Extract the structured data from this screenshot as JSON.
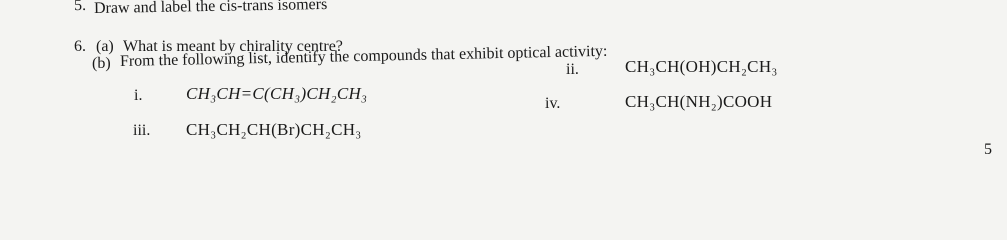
{
  "questions": [
    {
      "number": "5.",
      "text": "Draw and label the cis-trans isomers"
    },
    {
      "number": "6.",
      "parts": [
        {
          "label": "(a)",
          "text": "What is meant by chirality centre?"
        },
        {
          "label": "(b)",
          "text": "From the following list, identify the compounds that exhibit optical activity:",
          "items": [
            {
              "label": "i.",
              "formula": "CH₃CH=C(CH₃)CH₂CH₃"
            },
            {
              "label": "ii.",
              "formula": "CH₃CH(OH)CH₂CH₃"
            },
            {
              "label": "iii.",
              "formula": "CH₃CH₂CH(Br)CH₂CH₃"
            },
            {
              "label": "iv.",
              "formula": "CH₃CH(NH₂)COOH"
            }
          ]
        }
      ]
    }
  ],
  "page_marker": "5"
}
